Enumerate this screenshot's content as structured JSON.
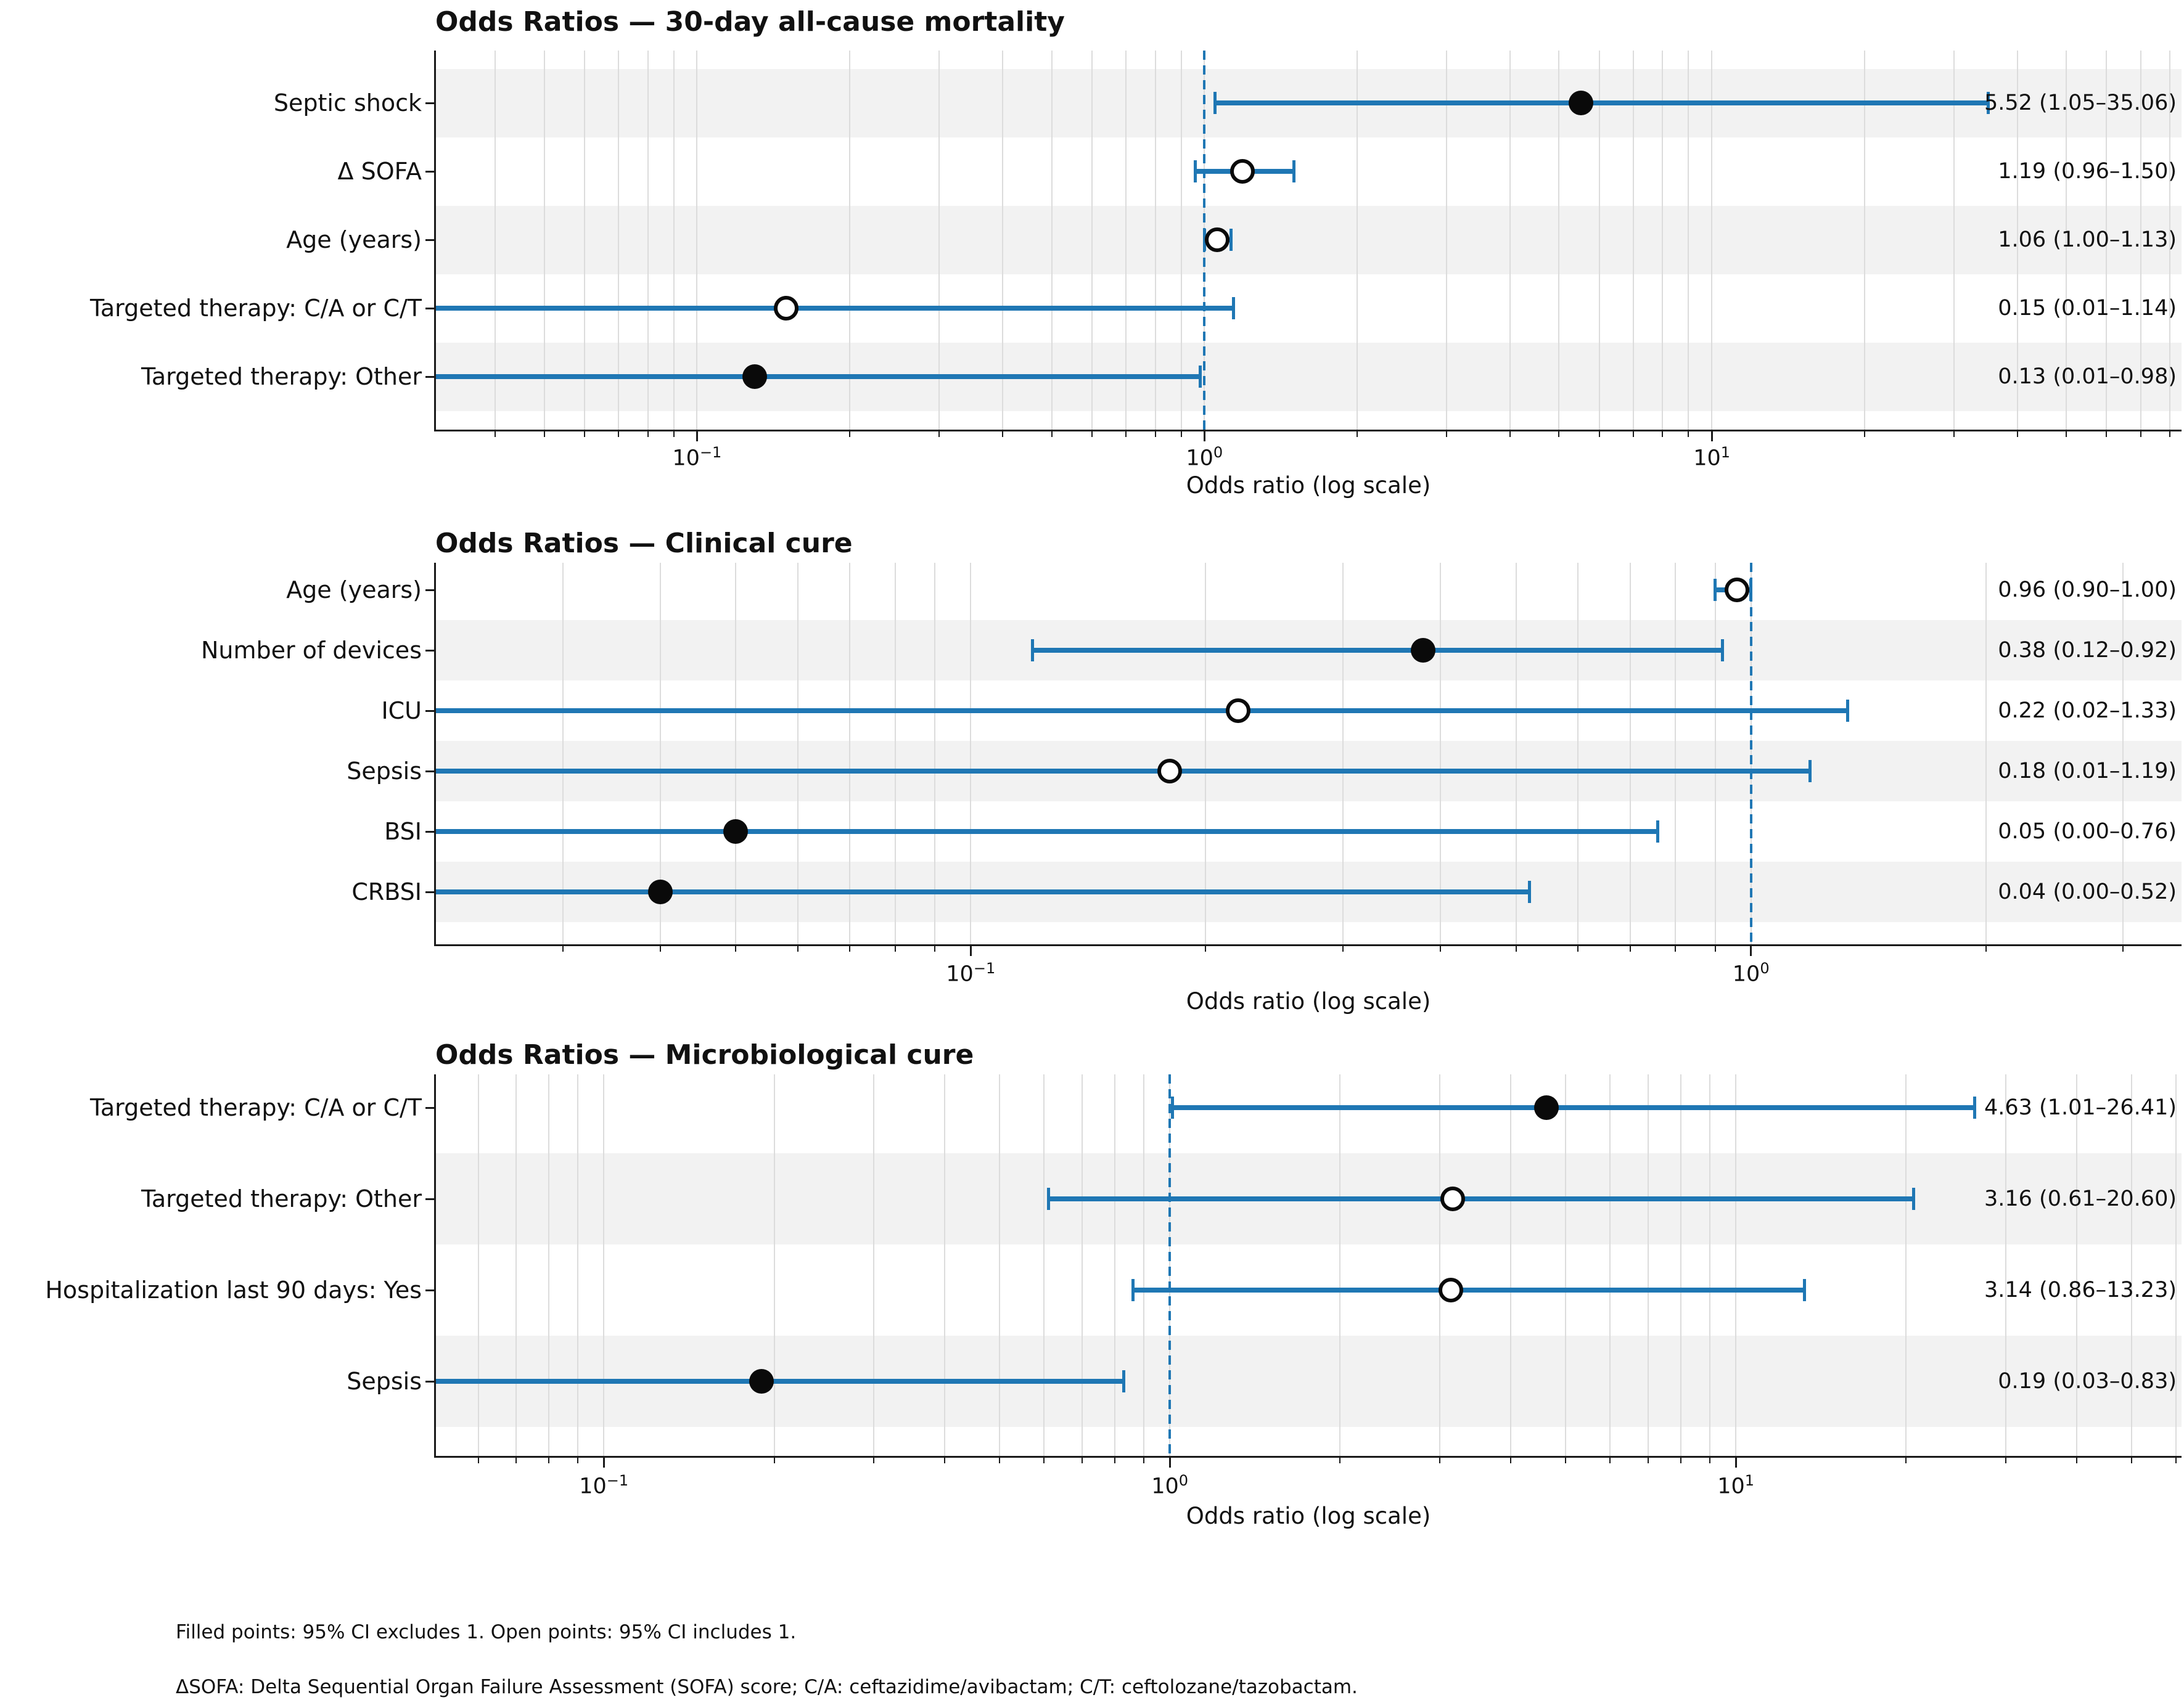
{
  "figure": {
    "background": "#ffffff",
    "accent_blue": "#1f77b4",
    "band_gray": "#f2f2f2",
    "grid_gray": "#dcdcdc",
    "text_color": "#111111",
    "marker_filled_color": "#0a0a0a",
    "marker_open_fill": "#ffffff"
  },
  "footnotes": [
    "Filled points: 95% CI excludes 1. Open points: 95% CI includes 1.",
    "ΔSOFA: Delta Sequential Organ Failure Assessment (SOFA) score; C/A: ceftazidime/avibactam; C/T: ceftolozane/tazobactam."
  ],
  "chart_data": [
    {
      "type": "scatter",
      "variant": "forest-plot",
      "title": "Odds Ratios — 30-day all-cause mortality",
      "xlabel": "Odds ratio (log scale)",
      "xscale": "log",
      "xlim": [
        0.0305,
        84.3
      ],
      "xticks": [
        0.1,
        1,
        10
      ],
      "xtick_labels": [
        "10⁻¹",
        "10⁰",
        "10¹"
      ],
      "grid": "minor-and-major-vertical",
      "refline": 1.0,
      "rows": [
        {
          "label": "Septic shock",
          "or": 5.52,
          "lo": 1.05,
          "hi": 35.06,
          "filled": true,
          "annotation": "5.52 (1.05–35.06)"
        },
        {
          "label": "Δ SOFA",
          "or": 1.19,
          "lo": 0.96,
          "hi": 1.5,
          "filled": false,
          "annotation": "1.19 (0.96–1.50)"
        },
        {
          "label": "Age (years)",
          "or": 1.06,
          "lo": 1.0,
          "hi": 1.13,
          "filled": false,
          "annotation": "1.06 (1.00–1.13)"
        },
        {
          "label": "Targeted therapy: C/A or C/T",
          "or": 0.15,
          "lo": 0.01,
          "hi": 1.14,
          "filled": false,
          "annotation": "0.15 (0.01–1.14)"
        },
        {
          "label": "Targeted therapy: Other",
          "or": 0.13,
          "lo": 0.01,
          "hi": 0.98,
          "filled": true,
          "annotation": "0.13 (0.01–0.98)"
        }
      ]
    },
    {
      "type": "scatter",
      "variant": "forest-plot",
      "title": "Odds Ratios — Clinical cure",
      "xlabel": "Odds ratio (log scale)",
      "xscale": "log",
      "xlim": [
        0.0206,
        3.563
      ],
      "xticks": [
        0.1,
        1,
        10
      ],
      "xtick_labels": [
        "10⁻¹",
        "10⁰",
        "10¹"
      ],
      "grid": "minor-and-major-vertical",
      "refline": 1.0,
      "rows": [
        {
          "label": "Age (years)",
          "or": 0.96,
          "lo": 0.9,
          "hi": 1.0,
          "filled": false,
          "annotation": "0.96 (0.90–1.00)"
        },
        {
          "label": "Number of devices",
          "or": 0.38,
          "lo": 0.12,
          "hi": 0.92,
          "filled": true,
          "annotation": "0.38 (0.12–0.92)"
        },
        {
          "label": "ICU",
          "or": 0.22,
          "lo": 0.02,
          "hi": 1.33,
          "filled": false,
          "annotation": "0.22 (0.02–1.33)"
        },
        {
          "label": "Sepsis",
          "or": 0.18,
          "lo": 0.01,
          "hi": 1.19,
          "filled": false,
          "annotation": "0.18 (0.01–1.19)"
        },
        {
          "label": "BSI",
          "or": 0.05,
          "lo": 0.004,
          "hi": 0.76,
          "filled": true,
          "annotation": "0.05 (0.00–0.76)"
        },
        {
          "label": "CRBSI",
          "or": 0.04,
          "lo": 0.004,
          "hi": 0.52,
          "filled": true,
          "annotation": "0.04 (0.00–0.52)"
        }
      ]
    },
    {
      "type": "scatter",
      "variant": "forest-plot",
      "title": "Odds Ratios — Microbiological cure",
      "xlabel": "Odds ratio (log scale)",
      "xscale": "log",
      "xlim": [
        0.0504,
        61.3
      ],
      "xticks": [
        0.1,
        1,
        10
      ],
      "xtick_labels": [
        "10⁻¹",
        "10⁰",
        "10¹"
      ],
      "grid": "minor-and-major-vertical",
      "refline": 1.0,
      "rows": [
        {
          "label": "Targeted therapy: C/A or C/T",
          "or": 4.63,
          "lo": 1.01,
          "hi": 26.41,
          "filled": true,
          "annotation": "4.63 (1.01–26.41)"
        },
        {
          "label": "Targeted therapy: Other",
          "or": 3.16,
          "lo": 0.61,
          "hi": 20.6,
          "filled": false,
          "annotation": "3.16 (0.61–20.60)"
        },
        {
          "label": "Hospitalization last 90 days: Yes",
          "or": 3.14,
          "lo": 0.86,
          "hi": 13.23,
          "filled": false,
          "annotation": "3.14 (0.86–13.23)"
        },
        {
          "label": "Sepsis",
          "or": 0.19,
          "lo": 0.03,
          "hi": 0.83,
          "filled": true,
          "annotation": "0.19 (0.03–0.83)"
        }
      ]
    }
  ]
}
